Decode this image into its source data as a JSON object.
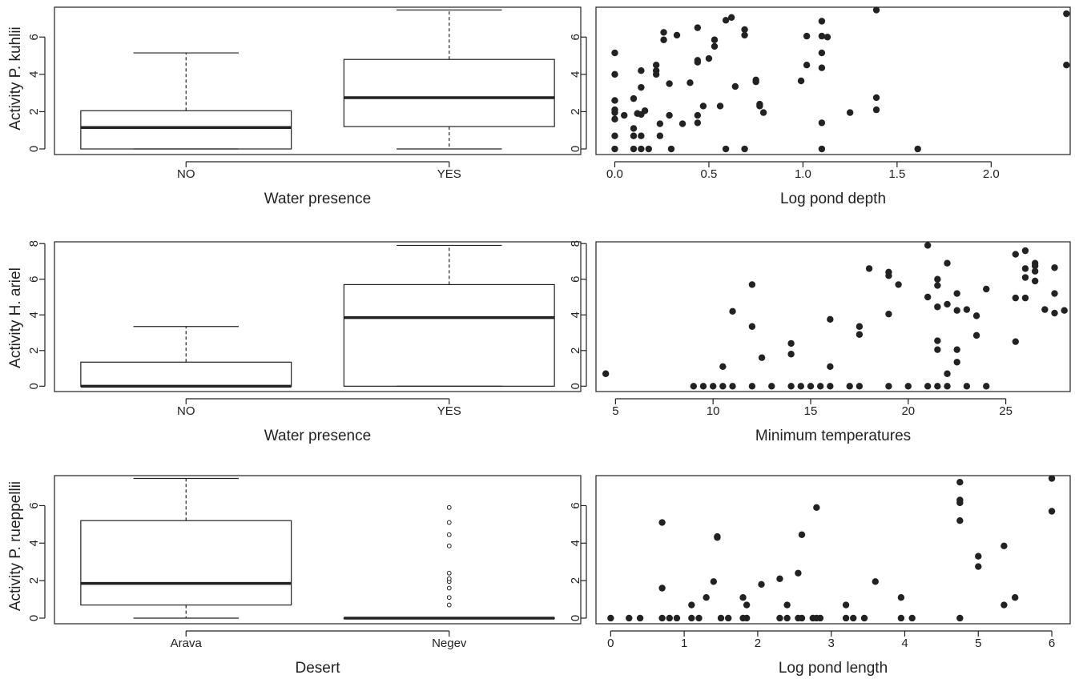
{
  "figure": {
    "rows": [
      {
        "ylabel": "Activity P. kuhlii"
      },
      {
        "ylabel": "Activity H. ariel"
      },
      {
        "ylabel": "Activity P. rueppellii"
      }
    ]
  },
  "chart_data": [
    {
      "id": "box1",
      "type": "boxplot",
      "xlabel": "Water presence",
      "ylabel": "Activity P. kuhlii",
      "categories": [
        "NO",
        "YES"
      ],
      "ylim": [
        -0.3,
        7.6
      ],
      "yticks": [
        0,
        2,
        4,
        6
      ],
      "boxes": [
        {
          "min": 0,
          "q1": 0.0,
          "median": 1.15,
          "q3": 2.05,
          "max": 5.15,
          "outliers": []
        },
        {
          "min": 0,
          "q1": 1.2,
          "median": 2.75,
          "q3": 4.8,
          "max": 7.45,
          "outliers": []
        }
      ],
      "grid": false,
      "legend": "none"
    },
    {
      "id": "scatter1",
      "type": "scatter",
      "xlabel": "Log pond depth",
      "ylabel": "",
      "xlim": [
        -0.1,
        2.42
      ],
      "ylim": [
        -0.3,
        7.6
      ],
      "xticks": [
        0.0,
        0.5,
        1.0,
        1.5,
        2.0
      ],
      "xtick_labels": [
        "0.0",
        "0.5",
        "1.0",
        "1.5",
        "2.0"
      ],
      "yticks": [
        0,
        2,
        4,
        6
      ],
      "points": [
        [
          0,
          5.15
        ],
        [
          0,
          4.0
        ],
        [
          0,
          2.6
        ],
        [
          0,
          2.1
        ],
        [
          0,
          1.95
        ],
        [
          0,
          1.6
        ],
        [
          0,
          0.7
        ],
        [
          0,
          0
        ],
        [
          0.05,
          1.8
        ],
        [
          0.1,
          2.7
        ],
        [
          0.1,
          1.1
        ],
        [
          0.1,
          0.7
        ],
        [
          0.1,
          0
        ],
        [
          0.12,
          1.9
        ],
        [
          0.14,
          4.2
        ],
        [
          0.14,
          3.3
        ],
        [
          0.14,
          1.85
        ],
        [
          0.14,
          0.7
        ],
        [
          0.14,
          0
        ],
        [
          0.16,
          2.05
        ],
        [
          0.18,
          0
        ],
        [
          0.22,
          4.5
        ],
        [
          0.22,
          4.2
        ],
        [
          0.22,
          4.0
        ],
        [
          0.24,
          0.7
        ],
        [
          0.24,
          1.35
        ],
        [
          0.26,
          6.25
        ],
        [
          0.26,
          5.85
        ],
        [
          0.29,
          3.5
        ],
        [
          0.29,
          1.8
        ],
        [
          0.3,
          0
        ],
        [
          0.33,
          6.1
        ],
        [
          0.36,
          1.35
        ],
        [
          0.4,
          3.55
        ],
        [
          0.44,
          6.5
        ],
        [
          0.44,
          4.75
        ],
        [
          0.44,
          4.65
        ],
        [
          0.44,
          1.8
        ],
        [
          0.44,
          1.4
        ],
        [
          0.47,
          2.3
        ],
        [
          0.5,
          4.85
        ],
        [
          0.53,
          5.85
        ],
        [
          0.53,
          5.5
        ],
        [
          0.56,
          2.3
        ],
        [
          0.59,
          6.9
        ],
        [
          0.59,
          0
        ],
        [
          0.62,
          7.05
        ],
        [
          0.64,
          3.35
        ],
        [
          0.69,
          6.4
        ],
        [
          0.69,
          6.1
        ],
        [
          0.69,
          0
        ],
        [
          0.75,
          3.7
        ],
        [
          0.75,
          3.6
        ],
        [
          0.77,
          2.4
        ],
        [
          0.77,
          2.3
        ],
        [
          0.79,
          1.95
        ],
        [
          0.99,
          3.65
        ],
        [
          1.02,
          6.05
        ],
        [
          1.02,
          4.5
        ],
        [
          1.1,
          6.85
        ],
        [
          1.1,
          6.05
        ],
        [
          1.1,
          5.15
        ],
        [
          1.1,
          4.35
        ],
        [
          1.1,
          1.4
        ],
        [
          1.1,
          0
        ],
        [
          1.13,
          6.0
        ],
        [
          1.25,
          1.95
        ],
        [
          1.39,
          7.45
        ],
        [
          1.39,
          2.75
        ],
        [
          1.39,
          2.1
        ],
        [
          1.61,
          0
        ],
        [
          2.4,
          7.25
        ],
        [
          2.4,
          4.5
        ]
      ],
      "grid": false,
      "legend": "none"
    },
    {
      "id": "box2",
      "type": "boxplot",
      "xlabel": "Water presence",
      "ylabel": "Activity H. ariel",
      "categories": [
        "NO",
        "YES"
      ],
      "ylim": [
        -0.3,
        8.1
      ],
      "yticks": [
        0,
        2,
        4,
        6,
        8
      ],
      "boxes": [
        {
          "min": 0,
          "q1": 0.0,
          "median": 0.0,
          "q3": 1.35,
          "max": 3.35,
          "outliers": []
        },
        {
          "min": 0,
          "q1": 0.0,
          "median": 3.85,
          "q3": 5.7,
          "max": 7.9,
          "outliers": []
        }
      ],
      "grid": false,
      "legend": "none"
    },
    {
      "id": "scatter2",
      "type": "scatter",
      "xlabel": "Minimum temperatures",
      "ylabel": "",
      "xlim": [
        4.0,
        28.3
      ],
      "ylim": [
        -0.3,
        8.1
      ],
      "xticks": [
        5,
        10,
        15,
        20,
        25
      ],
      "xtick_labels": [
        "5",
        "10",
        "15",
        "20",
        "25"
      ],
      "yticks": [
        0,
        2,
        4,
        6,
        8
      ],
      "points": [
        [
          4.5,
          0.7
        ],
        [
          9,
          0
        ],
        [
          9.5,
          0
        ],
        [
          10,
          0
        ],
        [
          10.5,
          1.1
        ],
        [
          10.5,
          0
        ],
        [
          11,
          4.2
        ],
        [
          11,
          0
        ],
        [
          12,
          5.7
        ],
        [
          12,
          3.35
        ],
        [
          12,
          0
        ],
        [
          12.5,
          1.6
        ],
        [
          13,
          0
        ],
        [
          14,
          2.4
        ],
        [
          14,
          1.8
        ],
        [
          14,
          0
        ],
        [
          14.5,
          0
        ],
        [
          15,
          0
        ],
        [
          15.5,
          0
        ],
        [
          16,
          3.75
        ],
        [
          16,
          1.1
        ],
        [
          16,
          0
        ],
        [
          17,
          0
        ],
        [
          17.5,
          3.35
        ],
        [
          17.5,
          2.9
        ],
        [
          17.5,
          0
        ],
        [
          18,
          6.6
        ],
        [
          19,
          6.4
        ],
        [
          19,
          6.2
        ],
        [
          19,
          4.05
        ],
        [
          19,
          0
        ],
        [
          19.5,
          5.7
        ],
        [
          20,
          0
        ],
        [
          21,
          7.9
        ],
        [
          21,
          5.0
        ],
        [
          21,
          0
        ],
        [
          21.5,
          6.0
        ],
        [
          21.5,
          5.65
        ],
        [
          21.5,
          4.45
        ],
        [
          21.5,
          2.55
        ],
        [
          21.5,
          2.05
        ],
        [
          21.5,
          0
        ],
        [
          22,
          6.9
        ],
        [
          22,
          4.6
        ],
        [
          22,
          0.7
        ],
        [
          22,
          0
        ],
        [
          22.5,
          5.2
        ],
        [
          22.5,
          4.25
        ],
        [
          22.5,
          2.05
        ],
        [
          22.5,
          1.35
        ],
        [
          23,
          4.3
        ],
        [
          23,
          0
        ],
        [
          23.5,
          3.95
        ],
        [
          23.5,
          2.85
        ],
        [
          24,
          5.45
        ],
        [
          24,
          0
        ],
        [
          25.5,
          7.4
        ],
        [
          25.5,
          4.95
        ],
        [
          25.5,
          2.5
        ],
        [
          26,
          7.6
        ],
        [
          26,
          6.6
        ],
        [
          26,
          6.1
        ],
        [
          26,
          4.95
        ],
        [
          26.5,
          6.9
        ],
        [
          26.5,
          6.75
        ],
        [
          26.5,
          6.45
        ],
        [
          26.5,
          5.9
        ],
        [
          27,
          4.3
        ],
        [
          27.5,
          6.65
        ],
        [
          27.5,
          5.2
        ],
        [
          27.5,
          4.1
        ],
        [
          28,
          4.25
        ]
      ],
      "grid": false,
      "legend": "none"
    },
    {
      "id": "box3",
      "type": "boxplot",
      "xlabel": "Desert",
      "ylabel": "Activity P. rueppellii",
      "categories": [
        "Arava",
        "Negev"
      ],
      "ylim": [
        -0.3,
        7.6
      ],
      "yticks": [
        0,
        2,
        4,
        6
      ],
      "boxes": [
        {
          "min": 0,
          "q1": 0.7,
          "median": 1.85,
          "q3": 5.2,
          "max": 7.45,
          "outliers": []
        },
        {
          "min": 0,
          "q1": 0.0,
          "median": 0.0,
          "q3": 0.0,
          "max": 0.0,
          "outliers": [
            0.7,
            1.1,
            1.6,
            1.95,
            2.1,
            2.4,
            3.85,
            4.45,
            5.1,
            5.9
          ]
        }
      ],
      "grid": false,
      "legend": "none"
    },
    {
      "id": "scatter3",
      "type": "scatter",
      "xlabel": "Log pond length",
      "ylabel": "",
      "xlim": [
        -0.2,
        6.25
      ],
      "ylim": [
        -0.3,
        7.6
      ],
      "xticks": [
        0,
        1,
        2,
        3,
        4,
        5,
        6
      ],
      "xtick_labels": [
        "0",
        "1",
        "2",
        "3",
        "4",
        "5",
        "6"
      ],
      "yticks": [
        0,
        2,
        4,
        6
      ],
      "points": [
        [
          0,
          0
        ],
        [
          0.25,
          0
        ],
        [
          0.4,
          0
        ],
        [
          0.7,
          5.1
        ],
        [
          0.7,
          1.6
        ],
        [
          0.7,
          0
        ],
        [
          0.8,
          0
        ],
        [
          0.9,
          0
        ],
        [
          1.1,
          0.7
        ],
        [
          1.1,
          0
        ],
        [
          1.2,
          0
        ],
        [
          1.3,
          1.1
        ],
        [
          1.4,
          1.95
        ],
        [
          1.45,
          4.35
        ],
        [
          1.45,
          4.3
        ],
        [
          1.5,
          0
        ],
        [
          1.6,
          0
        ],
        [
          1.8,
          1.1
        ],
        [
          1.8,
          0
        ],
        [
          1.85,
          0.7
        ],
        [
          1.85,
          0
        ],
        [
          2.05,
          1.8
        ],
        [
          2.3,
          2.1
        ],
        [
          2.3,
          0
        ],
        [
          2.4,
          0.7
        ],
        [
          2.4,
          0
        ],
        [
          2.55,
          2.4
        ],
        [
          2.55,
          0
        ],
        [
          2.6,
          4.45
        ],
        [
          2.6,
          0
        ],
        [
          2.75,
          0
        ],
        [
          2.8,
          5.9
        ],
        [
          2.8,
          0
        ],
        [
          2.85,
          0
        ],
        [
          3.2,
          0.7
        ],
        [
          3.2,
          0
        ],
        [
          3.3,
          0
        ],
        [
          3.45,
          0
        ],
        [
          3.6,
          1.95
        ],
        [
          3.95,
          1.1
        ],
        [
          3.95,
          0
        ],
        [
          4.1,
          0
        ],
        [
          4.75,
          7.25
        ],
        [
          4.75,
          6.3
        ],
        [
          4.75,
          6.15
        ],
        [
          4.75,
          5.2
        ],
        [
          4.75,
          0
        ],
        [
          5.0,
          3.3
        ],
        [
          5.0,
          2.75
        ],
        [
          5.35,
          3.85
        ],
        [
          5.35,
          0.7
        ],
        [
          5.5,
          1.1
        ],
        [
          6.0,
          7.45
        ],
        [
          6.0,
          5.7
        ]
      ],
      "grid": false,
      "legend": "none"
    }
  ]
}
